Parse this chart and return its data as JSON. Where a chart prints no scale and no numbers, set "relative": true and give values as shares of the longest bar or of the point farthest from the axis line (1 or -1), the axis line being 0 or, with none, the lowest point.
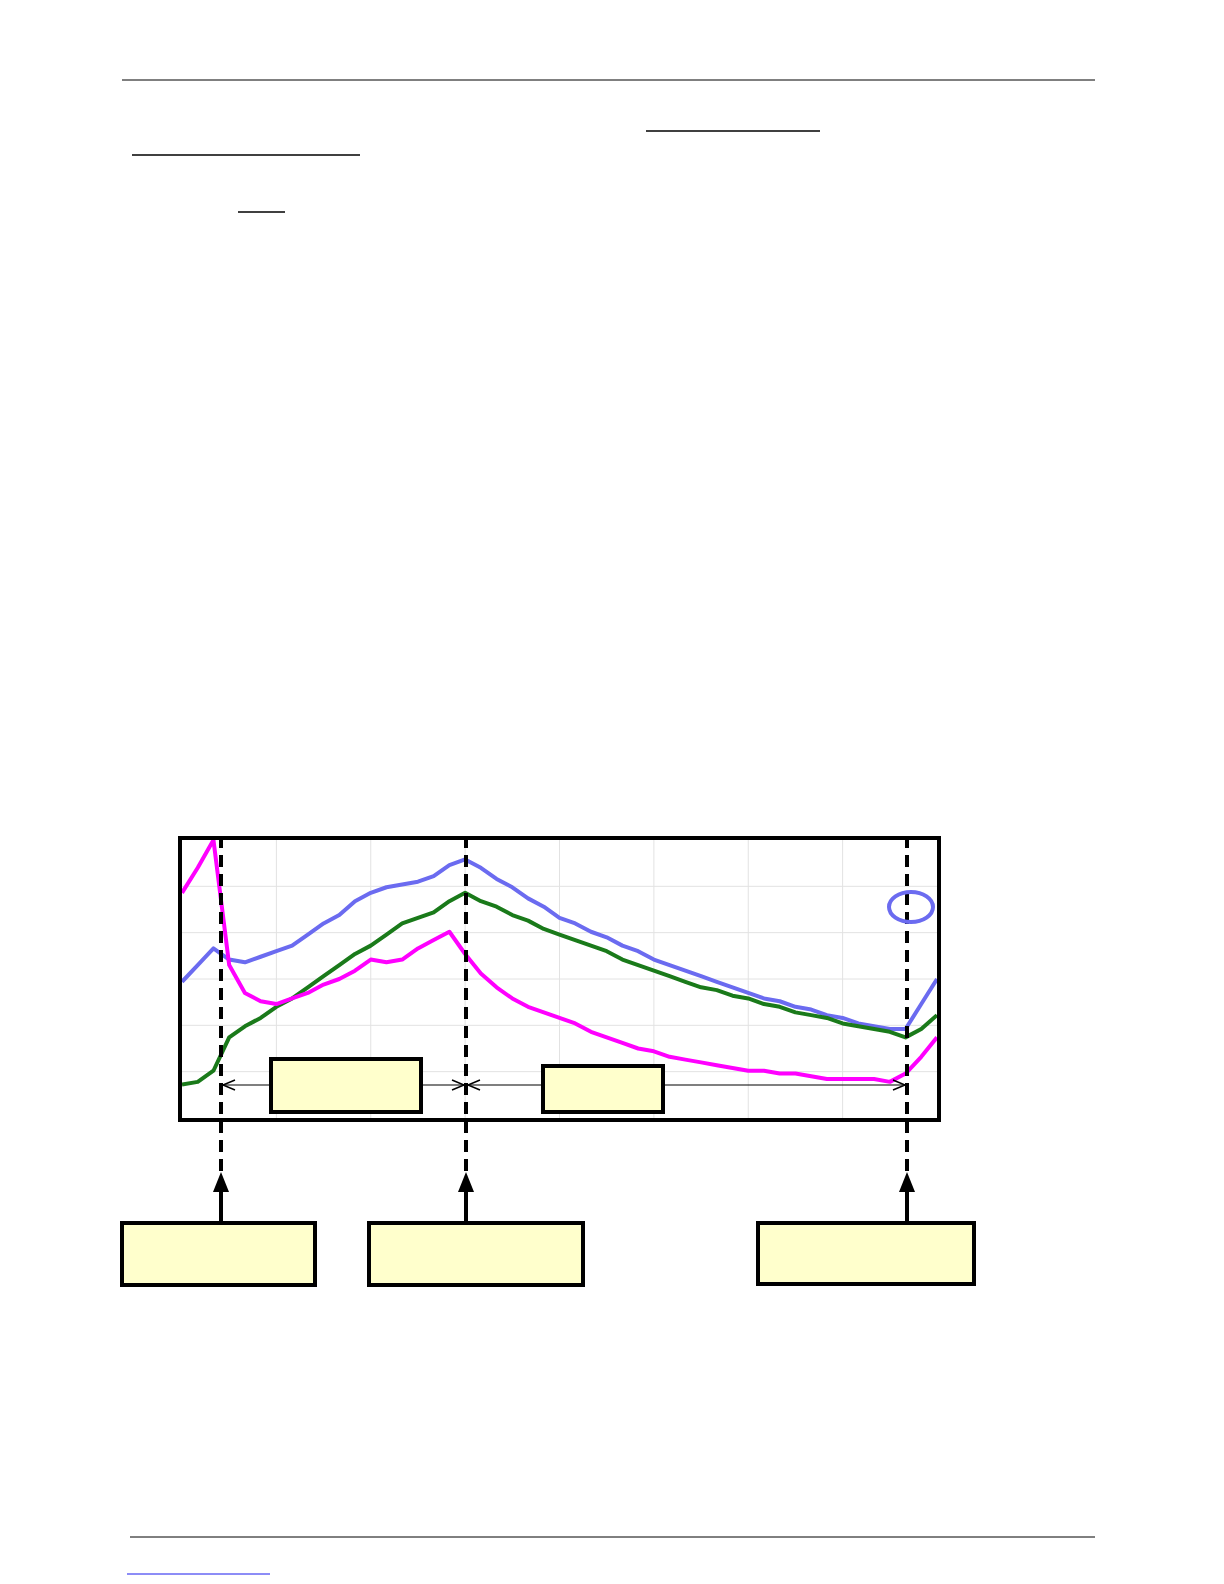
{
  "chart_data": {
    "type": "line",
    "relative": true,
    "grid": true,
    "marker": "none",
    "line_style": "solid",
    "categories": [
      null,
      null,
      null,
      null,
      null,
      null,
      null,
      null,
      null,
      null,
      null,
      null,
      null,
      null,
      null,
      null,
      null,
      null,
      null,
      null,
      null,
      null,
      null,
      null,
      null,
      null,
      null,
      null,
      null,
      null,
      null,
      null,
      null,
      null,
      null,
      null,
      null,
      null,
      null,
      null,
      null,
      null,
      null,
      null,
      null,
      null,
      null,
      null,
      null
    ],
    "series": [
      {
        "color": "#6b6bf0",
        "values": [
          0.49,
          0.55,
          0.61,
          0.57,
          0.56,
          0.58,
          0.6,
          0.62,
          0.66,
          0.7,
          0.73,
          0.78,
          0.81,
          0.83,
          0.84,
          0.85,
          0.87,
          0.91,
          0.93,
          0.9,
          0.86,
          0.83,
          0.79,
          0.76,
          0.72,
          0.7,
          0.67,
          0.65,
          0.62,
          0.6,
          0.57,
          0.55,
          0.53,
          0.51,
          0.49,
          0.47,
          0.45,
          0.43,
          0.42,
          0.4,
          0.39,
          0.37,
          0.36,
          0.34,
          0.33,
          0.32,
          0.32,
          0.41,
          0.5
        ]
      },
      {
        "color": "#1a7a1a",
        "values": [
          0.12,
          0.13,
          0.17,
          0.29,
          0.33,
          0.36,
          0.4,
          0.43,
          0.47,
          0.51,
          0.55,
          0.59,
          0.62,
          0.66,
          0.7,
          0.72,
          0.74,
          0.78,
          0.81,
          0.78,
          0.76,
          0.73,
          0.71,
          0.68,
          0.66,
          0.64,
          0.62,
          0.6,
          0.57,
          0.55,
          0.53,
          0.51,
          0.49,
          0.47,
          0.46,
          0.44,
          0.43,
          0.41,
          0.4,
          0.38,
          0.37,
          0.36,
          0.34,
          0.33,
          0.32,
          0.31,
          0.29,
          0.32,
          0.37
        ]
      },
      {
        "color": "#ff00ff",
        "values": [
          0.81,
          0.9,
          1,
          0.55,
          0.45,
          0.42,
          0.41,
          0.43,
          0.45,
          0.48,
          0.5,
          0.53,
          0.57,
          0.56,
          0.57,
          0.61,
          0.64,
          0.67,
          0.59,
          0.52,
          0.47,
          0.43,
          0.4,
          0.38,
          0.36,
          0.34,
          0.31,
          0.29,
          0.27,
          0.25,
          0.24,
          0.22,
          0.21,
          0.2,
          0.19,
          0.18,
          0.17,
          0.17,
          0.16,
          0.16,
          0.15,
          0.14,
          0.14,
          0.14,
          0.14,
          0.13,
          0.16,
          0.22,
          0.29
        ]
      }
    ]
  }
}
